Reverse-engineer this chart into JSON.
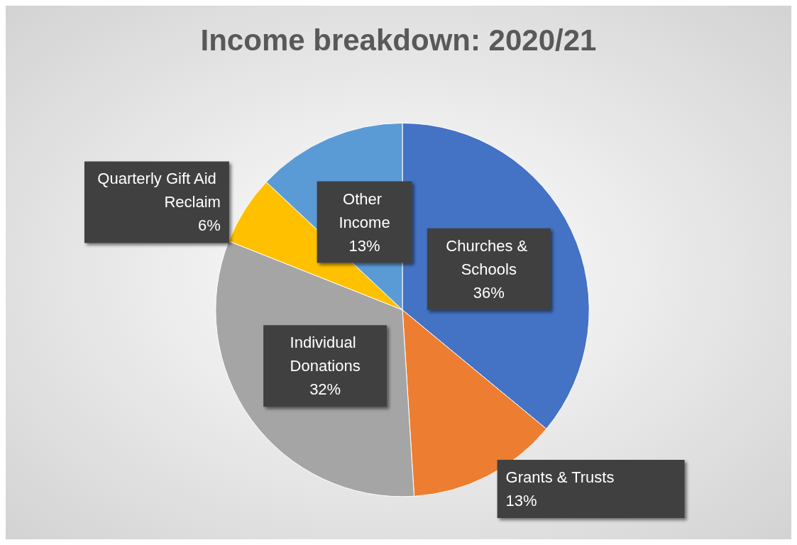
{
  "chart_data": {
    "type": "pie",
    "title": "Income breakdown: 2020/21",
    "categories": [
      "Churches & Schools",
      "Grants & Trusts",
      "Individual Donations",
      "Quarterly Gift Aid Reclaim",
      "Other Income"
    ],
    "values": [
      36,
      13,
      32,
      6,
      13
    ],
    "value_labels": [
      "36%",
      "13%",
      "32%",
      "6%",
      "13%"
    ],
    "colors": [
      "#4472c4",
      "#ed7d31",
      "#a5a5a5",
      "#ffc000",
      "#5b9bd5"
    ],
    "legend": false
  }
}
